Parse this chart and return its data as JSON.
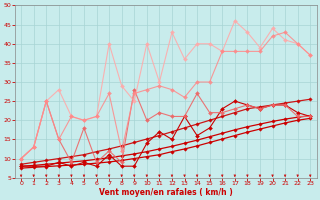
{
  "background_color": "#c8ecec",
  "grid_color": "#a8d4d4",
  "xlabel": "Vent moyen/en rafales ( km/h )",
  "xlabel_color": "#cc0000",
  "ylabel_color": "#cc0000",
  "xlim": [
    -0.5,
    23.5
  ],
  "ylim": [
    5,
    50
  ],
  "yticks": [
    5,
    10,
    15,
    20,
    25,
    30,
    35,
    40,
    45,
    50
  ],
  "xticks": [
    0,
    1,
    2,
    3,
    4,
    5,
    6,
    7,
    8,
    9,
    10,
    11,
    12,
    13,
    14,
    15,
    16,
    17,
    18,
    19,
    20,
    21,
    22,
    23
  ],
  "series": [
    {
      "x": [
        0,
        1,
        2,
        3,
        4,
        5,
        6,
        7,
        8,
        9,
        10,
        11,
        12,
        13,
        14,
        15,
        16,
        17,
        18,
        19,
        20,
        21,
        22,
        23
      ],
      "y": [
        7.5,
        7.7,
        7.9,
        8.1,
        8.3,
        8.5,
        8.8,
        9.1,
        9.5,
        10,
        10.5,
        11,
        11.8,
        12.5,
        13.3,
        14.2,
        15.1,
        16,
        16.9,
        17.7,
        18.5,
        19.3,
        20,
        20.5
      ],
      "color": "#cc0000",
      "alpha": 1.0,
      "linewidth": 0.9,
      "marker": "D",
      "markersize": 1.8
    },
    {
      "x": [
        0,
        1,
        2,
        3,
        4,
        5,
        6,
        7,
        8,
        9,
        10,
        11,
        12,
        13,
        14,
        15,
        16,
        17,
        18,
        19,
        20,
        21,
        22,
        23
      ],
      "y": [
        8,
        8.2,
        8.5,
        8.8,
        9.1,
        9.4,
        9.8,
        10.2,
        10.7,
        11.2,
        11.8,
        12.5,
        13.2,
        14,
        14.8,
        15.7,
        16.6,
        17.5,
        18.3,
        19,
        19.7,
        20.3,
        20.8,
        21.2
      ],
      "color": "#cc0000",
      "alpha": 1.0,
      "linewidth": 0.9,
      "marker": "D",
      "markersize": 1.8
    },
    {
      "x": [
        0,
        1,
        2,
        3,
        4,
        5,
        6,
        7,
        8,
        9,
        10,
        11,
        12,
        13,
        14,
        15,
        16,
        17,
        18,
        19,
        20,
        21,
        22,
        23
      ],
      "y": [
        8.5,
        9,
        9.5,
        10,
        10.5,
        11,
        11.8,
        12.5,
        13.3,
        14.2,
        15.1,
        16,
        17,
        18,
        19,
        20,
        21,
        22,
        23,
        23.5,
        24,
        24.5,
        25,
        25.5
      ],
      "color": "#cc0000",
      "alpha": 0.9,
      "linewidth": 0.9,
      "marker": "D",
      "markersize": 1.8
    },
    {
      "x": [
        0,
        1,
        2,
        3,
        4,
        5,
        6,
        7,
        8,
        9,
        10,
        11,
        12,
        13,
        14,
        15,
        16,
        17,
        18,
        19,
        20,
        21,
        22,
        23
      ],
      "y": [
        8,
        8,
        8,
        9,
        8,
        9,
        8,
        11,
        8,
        8,
        14,
        17,
        15,
        21,
        16,
        18,
        23,
        25,
        24,
        23,
        24,
        24,
        22,
        21
      ],
      "color": "#cc0000",
      "alpha": 1.0,
      "linewidth": 0.8,
      "marker": "D",
      "markersize": 2.0
    },
    {
      "x": [
        0,
        1,
        2,
        3,
        4,
        5,
        6,
        7,
        8,
        9,
        10,
        11,
        12,
        13,
        14,
        15,
        16,
        17,
        18,
        19,
        20,
        21,
        22,
        23
      ],
      "y": [
        10,
        13,
        25,
        15,
        9,
        18,
        9,
        12,
        9,
        28,
        20,
        22,
        21,
        21,
        27,
        22,
        22,
        23,
        24,
        23,
        24,
        24,
        21,
        21
      ],
      "color": "#ee6666",
      "alpha": 0.9,
      "linewidth": 0.8,
      "marker": "D",
      "markersize": 2.0
    },
    {
      "x": [
        0,
        1,
        2,
        3,
        4,
        5,
        6,
        7,
        8,
        9,
        10,
        11,
        12,
        13,
        14,
        15,
        16,
        17,
        18,
        19,
        20,
        21,
        22,
        23
      ],
      "y": [
        10,
        13,
        25,
        28,
        21,
        20,
        21,
        40,
        29,
        25,
        40,
        30,
        43,
        36,
        40,
        40,
        38,
        46,
        43,
        39,
        44,
        41,
        40,
        37
      ],
      "color": "#ffaaaa",
      "alpha": 0.9,
      "linewidth": 0.8,
      "marker": "D",
      "markersize": 2.0
    },
    {
      "x": [
        0,
        1,
        2,
        3,
        4,
        5,
        6,
        7,
        8,
        9,
        10,
        11,
        12,
        13,
        14,
        15,
        16,
        17,
        18,
        19,
        20,
        21,
        22,
        23
      ],
      "y": [
        10,
        13,
        25,
        15,
        21,
        20,
        21,
        27,
        12,
        27,
        28,
        29,
        28,
        26,
        30,
        30,
        38,
        38,
        38,
        38,
        42,
        43,
        40,
        37
      ],
      "color": "#ff8888",
      "alpha": 0.85,
      "linewidth": 0.8,
      "marker": "D",
      "markersize": 2.0
    }
  ]
}
